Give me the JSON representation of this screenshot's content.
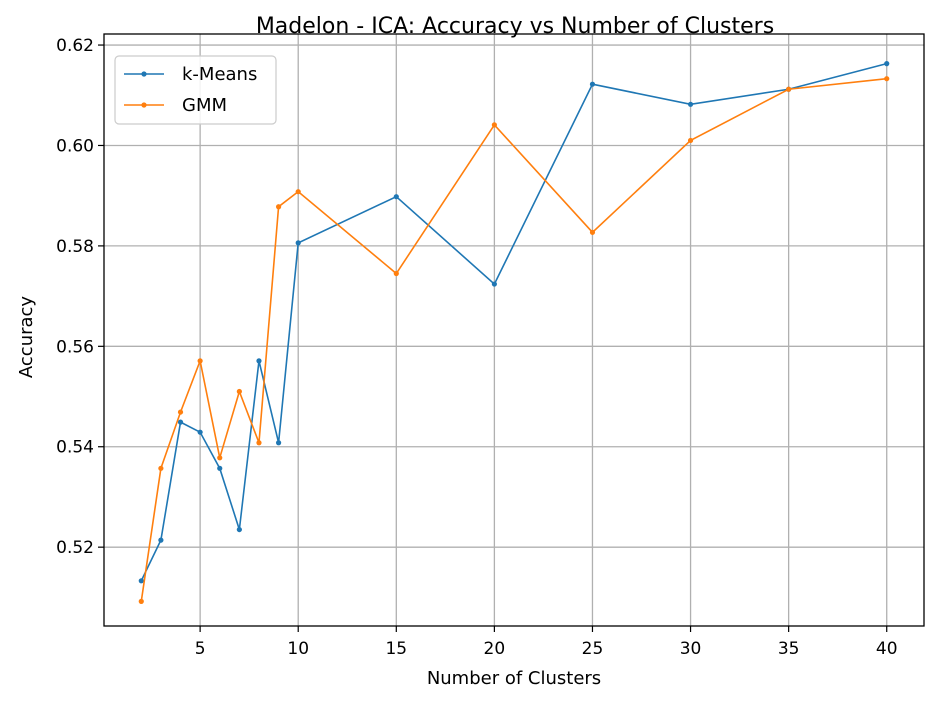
{
  "chart_data": {
    "type": "line",
    "title": "Madelon - ICA: Accuracy vs Number of Clusters",
    "xlabel": "Number of Clusters",
    "ylabel": "Accuracy",
    "xlim": [
      0.1,
      41.9
    ],
    "ylim": [
      0.5043,
      0.6222
    ],
    "xticks": [
      5,
      10,
      15,
      20,
      25,
      30,
      35,
      40
    ],
    "yticks": [
      0.52,
      0.54,
      0.56,
      0.58,
      0.6,
      0.62
    ],
    "ytick_labels": [
      "0.52",
      "0.54",
      "0.56",
      "0.58",
      "0.60",
      "0.62"
    ],
    "grid": true,
    "legend_position": "top-left",
    "x": [
      2,
      3,
      4,
      5,
      6,
      7,
      8,
      9,
      10,
      15,
      20,
      25,
      30,
      35,
      40
    ],
    "series": [
      {
        "name": "k-Means",
        "color": "#1f77b4",
        "values": [
          0.5133,
          0.5214,
          0.5449,
          0.5429,
          0.5357,
          0.5235,
          0.5571,
          0.5408,
          0.5806,
          0.5898,
          0.5724,
          0.6122,
          0.6082,
          0.6112,
          0.6163
        ]
      },
      {
        "name": "GMM",
        "color": "#ff7f0e",
        "values": [
          0.5092,
          0.5357,
          0.5469,
          0.5571,
          0.5378,
          0.551,
          0.5408,
          0.5878,
          0.5908,
          0.5745,
          0.6041,
          0.5827,
          0.601,
          0.6112,
          0.6133
        ]
      }
    ]
  }
}
